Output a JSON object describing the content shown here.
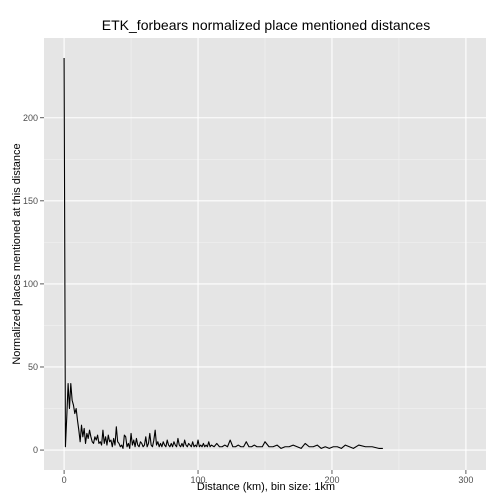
{
  "chart_data": {
    "type": "line",
    "title": "ETK_forbears normalized place mentioned distances",
    "xlabel": "Distance (km), bin size: 1km",
    "ylabel": "Normalized places mentioned at this distance",
    "xlim": [
      -15,
      315
    ],
    "ylim": [
      -12,
      248
    ],
    "x_ticks": [
      0,
      100,
      200,
      300
    ],
    "x_tick_labels": [
      "0",
      "100",
      "200",
      "300"
    ],
    "y_ticks": [
      0,
      50,
      100,
      150,
      200
    ],
    "y_tick_labels": [
      "0",
      "50",
      "100",
      "150",
      "200"
    ],
    "grid": true,
    "legend": "none",
    "colors": {
      "panel": "#e5e5e5",
      "grid_major": "#ffffff",
      "grid_minor": "#f2f2f2",
      "line": "#000000"
    },
    "series": [
      {
        "x": [
          0,
          1,
          2,
          3,
          4,
          5,
          6,
          7,
          8,
          9,
          10,
          11,
          12,
          13,
          14,
          15,
          16,
          17,
          18,
          19,
          20,
          21,
          22,
          23,
          24,
          25,
          26,
          27,
          28,
          29,
          30,
          31,
          32,
          33,
          34,
          35,
          36,
          37,
          38,
          39,
          40,
          41,
          42,
          43,
          44,
          45,
          46,
          47,
          48,
          49,
          50,
          51,
          52,
          53,
          54,
          55,
          56,
          57,
          58,
          59,
          60,
          61,
          62,
          63,
          64,
          65,
          66,
          67,
          68,
          69,
          70,
          71,
          72,
          73,
          74,
          75,
          76,
          77,
          78,
          79,
          80,
          81,
          82,
          83,
          84,
          85,
          86,
          87,
          88,
          89,
          90,
          91,
          92,
          93,
          94,
          95,
          96,
          97,
          98,
          99,
          100,
          101,
          102,
          103,
          104,
          105,
          106,
          107,
          108,
          109,
          110,
          112,
          114,
          116,
          118,
          120,
          122,
          124,
          126,
          128,
          130,
          132,
          134,
          136,
          138,
          140,
          142,
          144,
          146,
          148,
          150,
          153,
          156,
          159,
          162,
          165,
          168,
          171,
          174,
          177,
          180,
          183,
          186,
          189,
          192,
          195,
          198,
          201,
          204,
          207,
          210,
          213,
          216,
          220,
          225,
          230,
          235,
          238
        ],
        "y": [
          236,
          2,
          20,
          40,
          25,
          40,
          30,
          27,
          22,
          25,
          18,
          12,
          5,
          15,
          8,
          13,
          4,
          10,
          7,
          12,
          8,
          5,
          4,
          8,
          6,
          9,
          4,
          5,
          3,
          12,
          4,
          8,
          3,
          9,
          5,
          6,
          2,
          7,
          3,
          14,
          5,
          4,
          2,
          3,
          1,
          9,
          8,
          2,
          4,
          1,
          10,
          3,
          6,
          2,
          7,
          3,
          2,
          5,
          4,
          2,
          3,
          8,
          2,
          4,
          10,
          3,
          2,
          6,
          12,
          3,
          5,
          2,
          4,
          2,
          5,
          3,
          2,
          6,
          3,
          2,
          4,
          2,
          5,
          3,
          2,
          7,
          3,
          2,
          4,
          2,
          6,
          3,
          2,
          4,
          3,
          2,
          5,
          2,
          3,
          2,
          6,
          2,
          3,
          2,
          4,
          2,
          3,
          2,
          5,
          2,
          3,
          2,
          4,
          2,
          2,
          3,
          2,
          6,
          2,
          2,
          3,
          2,
          2,
          5,
          2,
          2,
          3,
          2,
          2,
          2,
          5,
          2,
          2,
          3,
          1,
          2,
          2,
          3,
          2,
          1,
          4,
          2,
          2,
          3,
          1,
          2,
          1,
          2,
          2,
          1,
          3,
          2,
          1,
          3,
          2,
          2,
          1,
          1
        ]
      }
    ]
  }
}
